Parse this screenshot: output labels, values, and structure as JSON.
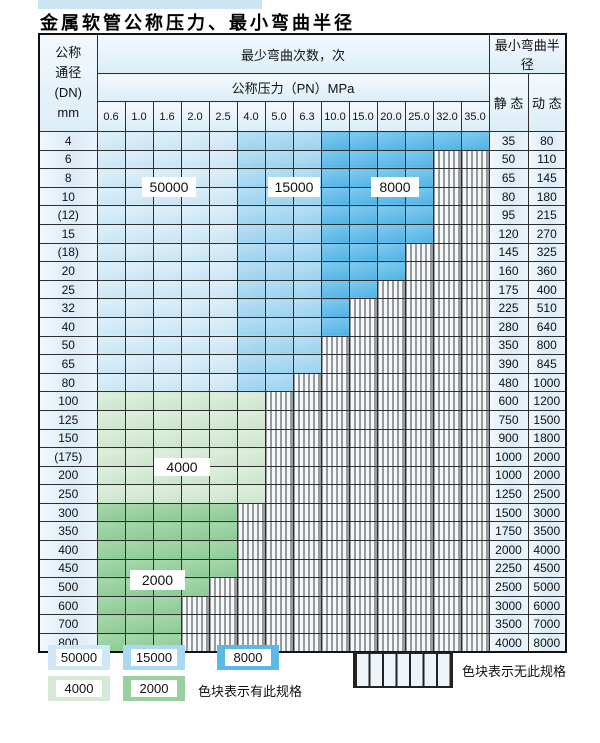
{
  "title": "金属软管公称压力、最小弯曲半径",
  "table": {
    "corner": [
      "公称",
      "通径",
      "(DN)",
      "mm"
    ],
    "header_cycles": "最少弯曲次数，次",
    "header_pressure": "公称压力（PN）MPa",
    "header_radius": "最小弯曲半径",
    "static_label": "静 态",
    "dynamic_label": "动 态",
    "pressure_columns": [
      "0.6",
      "1.0",
      "1.6",
      "2.0",
      "2.5",
      "4.0",
      "5.0",
      "6.3",
      "10.0",
      "15.0",
      "20.0",
      "25.0",
      "32.0",
      "35.0"
    ],
    "rows": [
      {
        "dn": "4",
        "spec": [
          [
            50000,
            5
          ],
          [
            15000,
            3
          ],
          [
            8000,
            6
          ]
        ],
        "static": "35",
        "dynamic": "80"
      },
      {
        "dn": "6",
        "spec": [
          [
            50000,
            5
          ],
          [
            15000,
            3
          ],
          [
            8000,
            4
          ]
        ],
        "static": "50",
        "dynamic": "110"
      },
      {
        "dn": "8",
        "spec": [
          [
            50000,
            5
          ],
          [
            15000,
            3
          ],
          [
            8000,
            4
          ]
        ],
        "static": "65",
        "dynamic": "145"
      },
      {
        "dn": "10",
        "spec": [
          [
            50000,
            5
          ],
          [
            15000,
            3
          ],
          [
            8000,
            4
          ]
        ],
        "static": "80",
        "dynamic": "180"
      },
      {
        "dn": "(12)",
        "spec": [
          [
            50000,
            5
          ],
          [
            15000,
            3
          ],
          [
            8000,
            4
          ]
        ],
        "static": "95",
        "dynamic": "215"
      },
      {
        "dn": "15",
        "spec": [
          [
            50000,
            5
          ],
          [
            15000,
            3
          ],
          [
            8000,
            4
          ]
        ],
        "static": "120",
        "dynamic": "270"
      },
      {
        "dn": "(18)",
        "spec": [
          [
            50000,
            5
          ],
          [
            15000,
            3
          ],
          [
            8000,
            3
          ]
        ],
        "static": "145",
        "dynamic": "325"
      },
      {
        "dn": "20",
        "spec": [
          [
            50000,
            5
          ],
          [
            15000,
            3
          ],
          [
            8000,
            3
          ]
        ],
        "static": "160",
        "dynamic": "360"
      },
      {
        "dn": "25",
        "spec": [
          [
            50000,
            5
          ],
          [
            15000,
            3
          ],
          [
            8000,
            2
          ]
        ],
        "static": "175",
        "dynamic": "400"
      },
      {
        "dn": "32",
        "spec": [
          [
            50000,
            5
          ],
          [
            15000,
            3
          ],
          [
            8000,
            1
          ]
        ],
        "static": "225",
        "dynamic": "510"
      },
      {
        "dn": "40",
        "spec": [
          [
            50000,
            5
          ],
          [
            15000,
            3
          ],
          [
            8000,
            1
          ]
        ],
        "static": "280",
        "dynamic": "640"
      },
      {
        "dn": "50",
        "spec": [
          [
            50000,
            5
          ],
          [
            15000,
            3
          ]
        ],
        "static": "350",
        "dynamic": "800"
      },
      {
        "dn": "65",
        "spec": [
          [
            50000,
            5
          ],
          [
            15000,
            3
          ]
        ],
        "static": "390",
        "dynamic": "845"
      },
      {
        "dn": "80",
        "spec": [
          [
            50000,
            5
          ],
          [
            15000,
            2
          ]
        ],
        "static": "480",
        "dynamic": "1000"
      },
      {
        "dn": "100",
        "spec": [
          [
            4000,
            6
          ]
        ],
        "static": "600",
        "dynamic": "1200"
      },
      {
        "dn": "125",
        "spec": [
          [
            4000,
            6
          ]
        ],
        "static": "750",
        "dynamic": "1500"
      },
      {
        "dn": "150",
        "spec": [
          [
            4000,
            6
          ]
        ],
        "static": "900",
        "dynamic": "1800"
      },
      {
        "dn": "(175)",
        "spec": [
          [
            4000,
            6
          ]
        ],
        "static": "1000",
        "dynamic": "2000"
      },
      {
        "dn": "200",
        "spec": [
          [
            4000,
            6
          ]
        ],
        "static": "1000",
        "dynamic": "2000"
      },
      {
        "dn": "250",
        "spec": [
          [
            4000,
            6
          ]
        ],
        "static": "1250",
        "dynamic": "2500"
      },
      {
        "dn": "300",
        "spec": [
          [
            2000,
            5
          ]
        ],
        "static": "1500",
        "dynamic": "3000"
      },
      {
        "dn": "350",
        "spec": [
          [
            2000,
            5
          ]
        ],
        "static": "1750",
        "dynamic": "3500"
      },
      {
        "dn": "400",
        "spec": [
          [
            2000,
            5
          ]
        ],
        "static": "2000",
        "dynamic": "4000"
      },
      {
        "dn": "450",
        "spec": [
          [
            2000,
            5
          ]
        ],
        "static": "2250",
        "dynamic": "4500"
      },
      {
        "dn": "500",
        "spec": [
          [
            2000,
            4
          ]
        ],
        "static": "2500",
        "dynamic": "5000"
      },
      {
        "dn": "600",
        "spec": [
          [
            2000,
            3
          ]
        ],
        "static": "3000",
        "dynamic": "6000"
      },
      {
        "dn": "700",
        "spec": [
          [
            2000,
            3
          ]
        ],
        "static": "3500",
        "dynamic": "7000"
      },
      {
        "dn": "800",
        "spec": [
          [
            2000,
            3
          ]
        ],
        "static": "4000",
        "dynamic": "8000"
      }
    ],
    "overlay_labels": {
      "b50000": "50000",
      "b15000": "15000",
      "b8000": "8000",
      "g4000": "4000",
      "g2000": "2000"
    }
  },
  "cycle_colors": {
    "50000": "#cfe7f6",
    "15000": "#a9d9f2",
    "8000": "#5cb8e7",
    "4000": "#d5ead5",
    "2000": "#97cf9f",
    "no_spec_pattern": "vertical-hatch"
  },
  "legend": {
    "items": [
      {
        "label": "50000",
        "color": "#cfe7f6"
      },
      {
        "label": "15000",
        "color": "#a9d9f2"
      },
      {
        "label": "8000",
        "color": "#5cb8e7"
      },
      {
        "label": "4000",
        "color": "#d5ead5"
      },
      {
        "label": "2000",
        "color": "#97cf9f"
      }
    ],
    "has_note": "色块表示有此规格",
    "none_note": "色块表示无此规格"
  }
}
